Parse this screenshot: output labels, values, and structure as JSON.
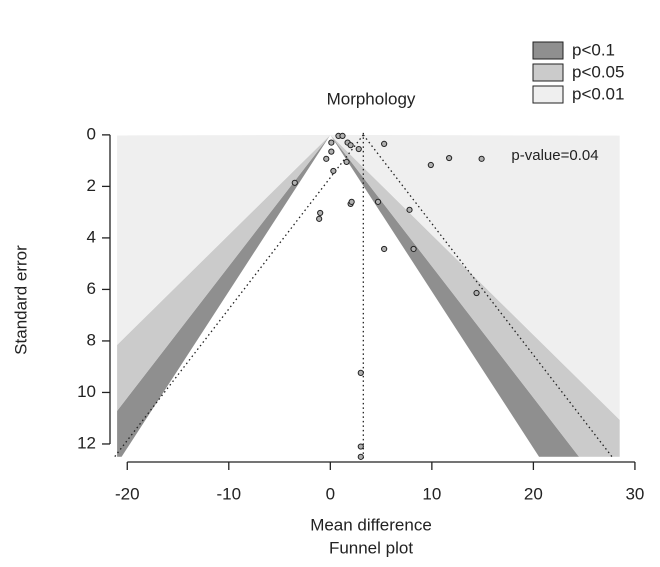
{
  "chart_data": {
    "type": "funnel",
    "title": "Morphology",
    "subtitle": "Funnel plot",
    "x_label": "Mean difference",
    "y_label": "Standard error",
    "annotation": "p-value=0.04",
    "xlim": [
      -21.7,
      30.5
    ],
    "xticks": [
      -20,
      -10,
      0,
      10,
      20,
      30
    ],
    "ylim": [
      -0.5,
      12.7
    ],
    "yticks": [
      0,
      2,
      4,
      6,
      8,
      10,
      12
    ],
    "y_inverted": true,
    "contour_region": {
      "xlim": [
        -21,
        28.5
      ],
      "ylim": [
        0,
        12.5
      ]
    },
    "contours": [
      {
        "name": "p<0.1",
        "color": "#8f8f8f",
        "z": [
          1.645,
          1.96
        ]
      },
      {
        "name": "p<0.05",
        "color": "#cbcbcb",
        "z": [
          1.96,
          2.576
        ]
      },
      {
        "name": "p<0.01",
        "color": "#efefef",
        "z": [
          2.576
        ]
      }
    ],
    "summary": 3.25,
    "summary_z": 1.96,
    "legend_position": "top-right",
    "points": {
      "color": "#b0b0b0",
      "x": [
        0.8,
        1.2,
        1.7,
        2.0,
        0.1,
        0.1,
        -0.4,
        2.8,
        5.3,
        1.6,
        0.3,
        -3.5,
        9.9,
        11.7,
        14.9,
        4.7,
        2.0,
        2.1,
        -1.0,
        -1.1,
        7.8,
        5.3,
        8.2,
        14.4,
        3.0,
        3.0,
        3.0
      ],
      "y": [
        0.04,
        0.04,
        0.3,
        0.4,
        0.3,
        0.65,
        0.93,
        0.55,
        0.35,
        1.05,
        1.4,
        1.86,
        1.17,
        0.9,
        0.93,
        2.6,
        2.68,
        2.6,
        3.03,
        3.26,
        2.91,
        4.43,
        4.43,
        6.14,
        9.24,
        12.1,
        12.5
      ]
    }
  }
}
